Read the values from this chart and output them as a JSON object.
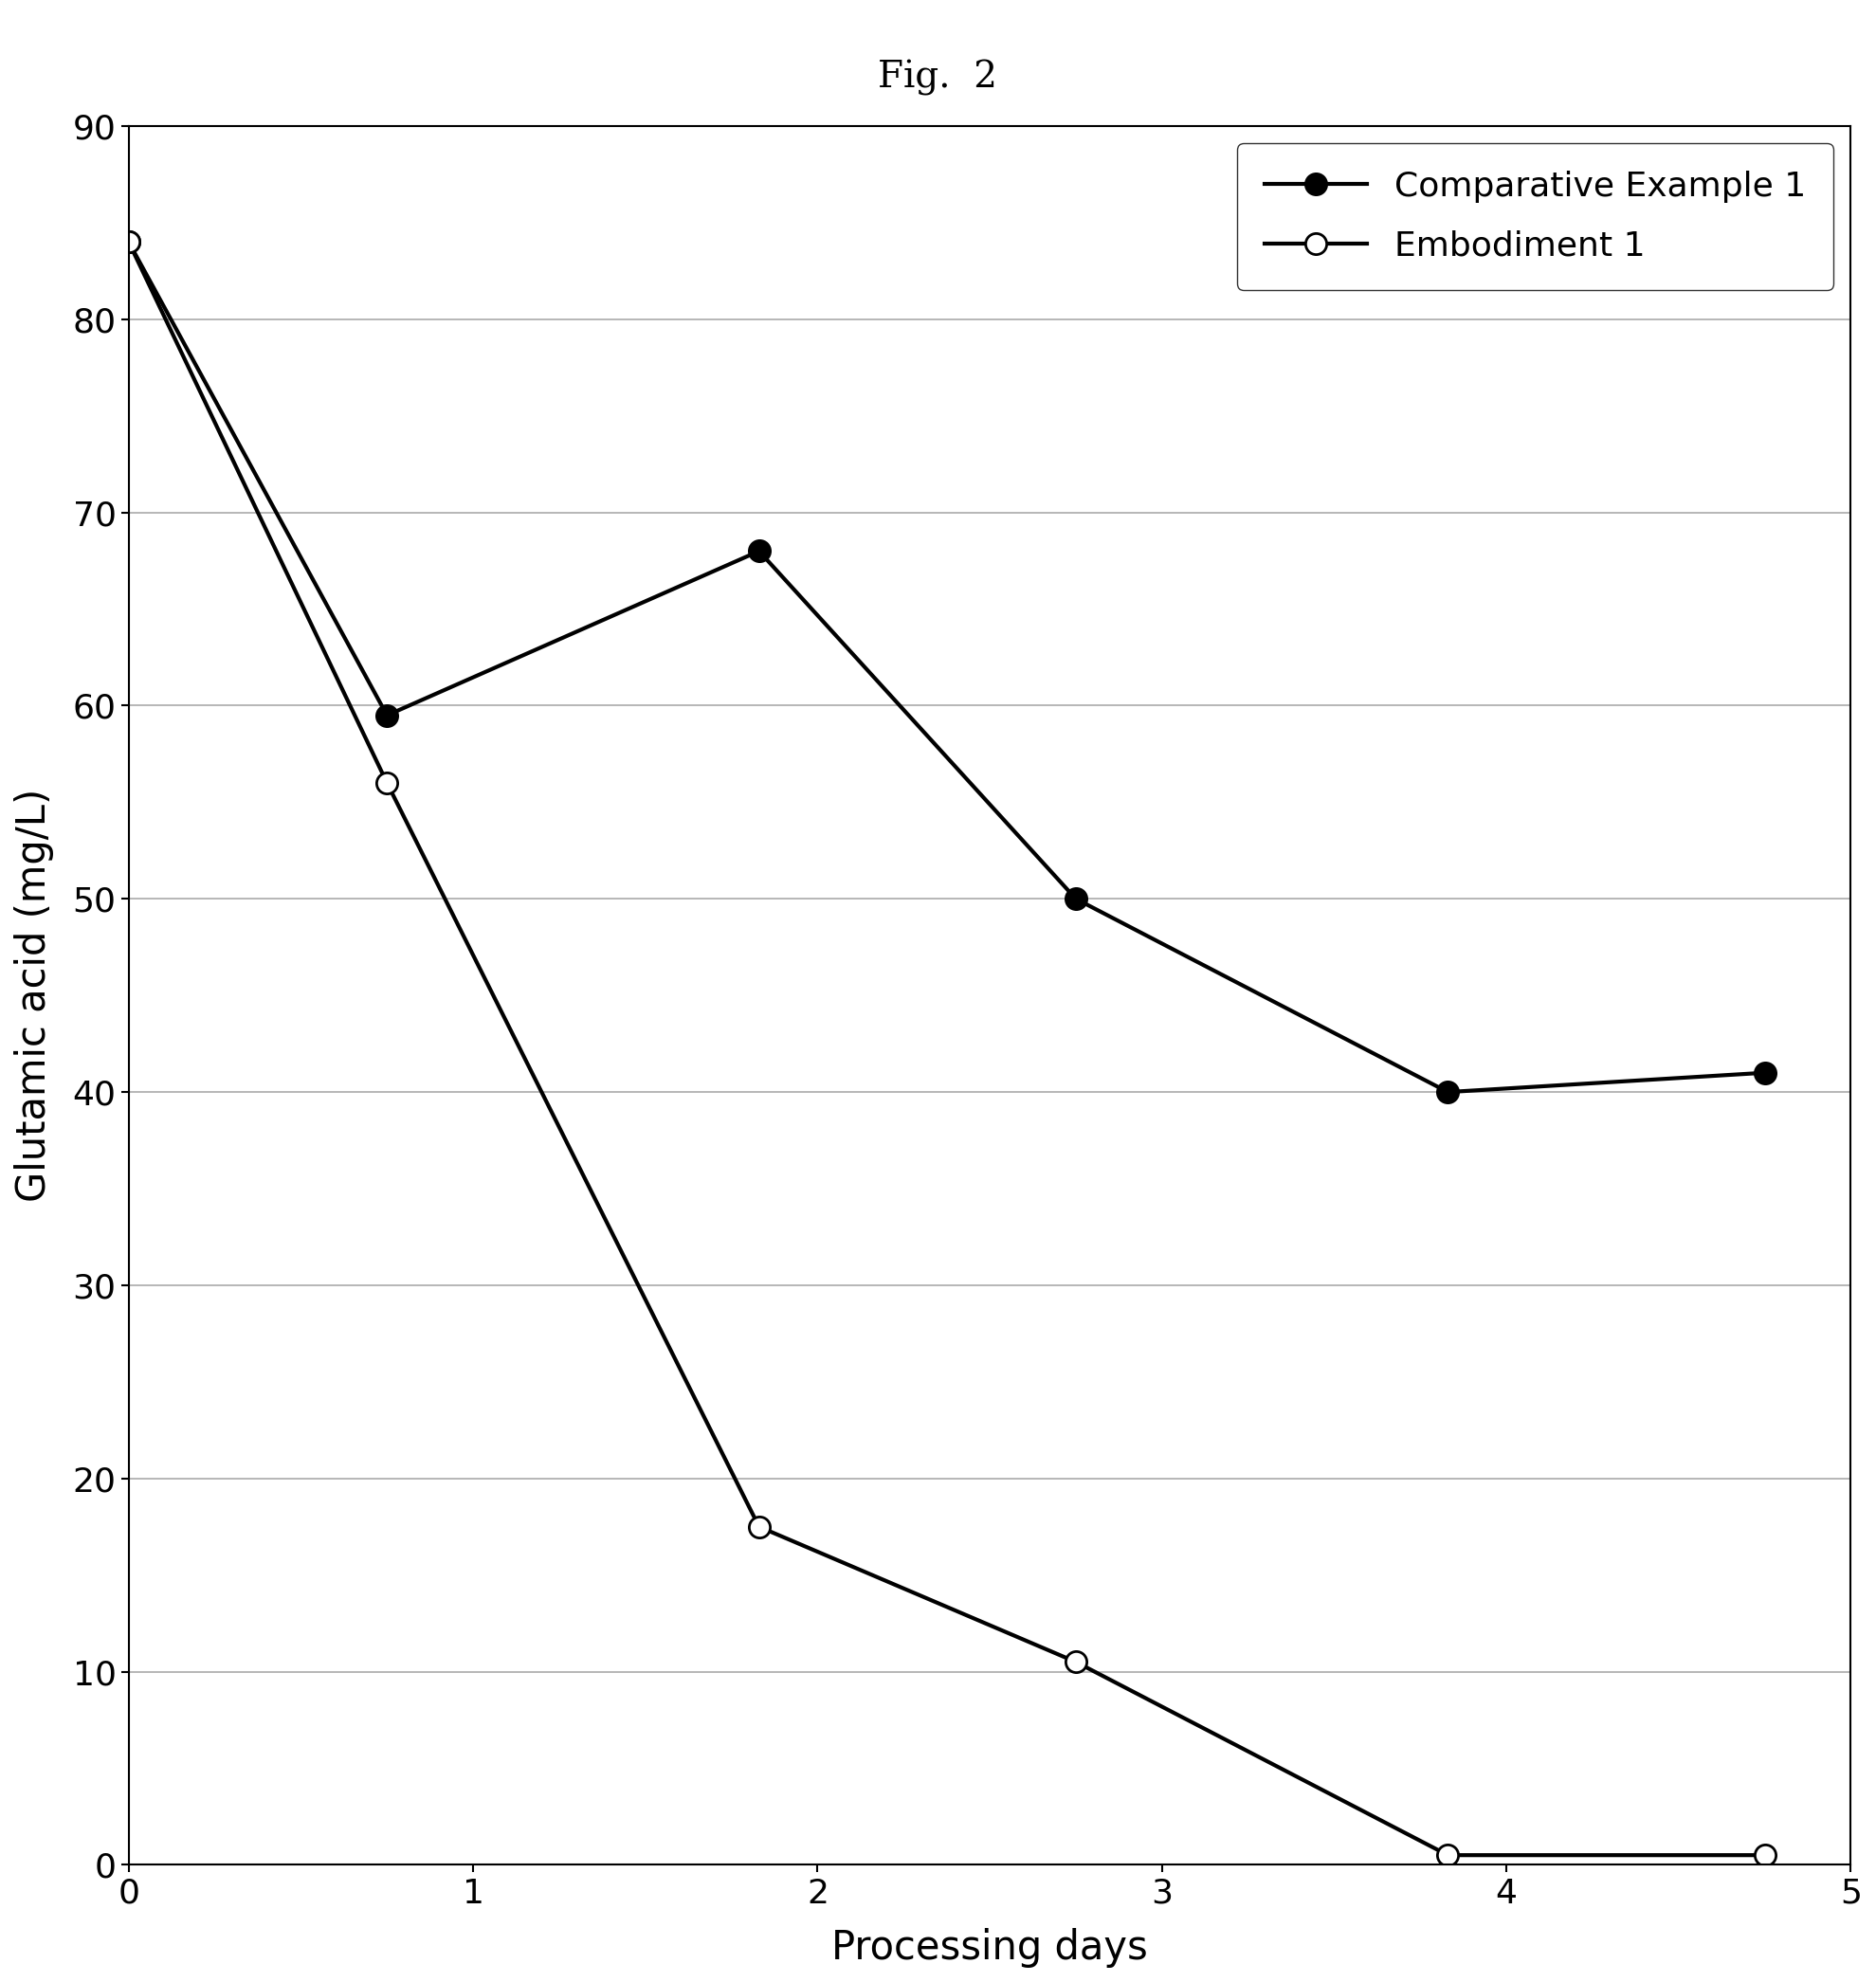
{
  "title": "Fig.  2",
  "xlabel": "Processing days",
  "ylabel": "Glutamic acid (mg/L)",
  "xlim": [
    0,
    5
  ],
  "ylim": [
    0,
    90
  ],
  "yticks": [
    0,
    10,
    20,
    30,
    40,
    50,
    60,
    70,
    80,
    90
  ],
  "xticks": [
    0,
    1,
    2,
    3,
    4,
    5
  ],
  "series": [
    {
      "label": "Comparative Example 1",
      "x": [
        0,
        0.75,
        1.83,
        2.75,
        3.83,
        4.75
      ],
      "y": [
        84,
        59.5,
        68,
        50,
        40,
        41
      ],
      "marker": "o",
      "markerfacecolor": "#000000",
      "markeredgecolor": "#000000",
      "linecolor": "#000000",
      "linewidth": 3.0,
      "markersize": 16
    },
    {
      "label": "Embodiment 1",
      "x": [
        0,
        0.75,
        1.83,
        2.75,
        3.83,
        4.75
      ],
      "y": [
        84,
        56,
        17.5,
        10.5,
        0.5,
        0.5
      ],
      "marker": "o",
      "markerfacecolor": "#ffffff",
      "markeredgecolor": "#000000",
      "linecolor": "#000000",
      "linewidth": 3.0,
      "markersize": 16
    }
  ],
  "legend_loc": "upper right",
  "legend_fontsize": 26,
  "axis_fontsize": 30,
  "tick_fontsize": 26,
  "title_fontsize": 28,
  "background_color": "#ffffff",
  "figure_bg": "#ffffff",
  "grid": true,
  "grid_color": "#aaaaaa",
  "grid_linewidth": 1.2
}
